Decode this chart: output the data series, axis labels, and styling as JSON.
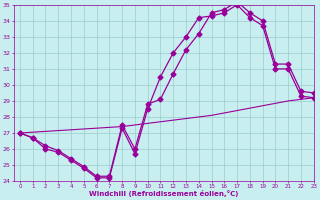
{
  "xlabel": "Windchill (Refroidissement éolien,°C)",
  "bg_color": "#c8eef0",
  "line_color": "#990099",
  "grid_color": "#99cccc",
  "line1_x": [
    0,
    1,
    2,
    3,
    4,
    5,
    6,
    7,
    8,
    9,
    10,
    11,
    12,
    13,
    14,
    15,
    16,
    17,
    18,
    19,
    20,
    21,
    22,
    23
  ],
  "line1_y": [
    27.0,
    26.7,
    26.0,
    25.8,
    25.3,
    24.8,
    24.2,
    24.2,
    27.3,
    25.7,
    28.5,
    30.5,
    32.0,
    33.0,
    34.2,
    34.3,
    34.5,
    35.0,
    34.2,
    33.7,
    31.0,
    31.0,
    29.3,
    29.2
  ],
  "line2_x": [
    0,
    1,
    2,
    3,
    4,
    5,
    6,
    7,
    8,
    9,
    10,
    11,
    12,
    13,
    14,
    15,
    16,
    17,
    18,
    19,
    20,
    21,
    22,
    23
  ],
  "line2_y": [
    27.0,
    26.7,
    26.2,
    25.9,
    25.4,
    24.9,
    24.3,
    24.3,
    27.5,
    26.0,
    28.8,
    29.1,
    30.7,
    32.2,
    33.2,
    34.5,
    34.7,
    35.2,
    34.5,
    34.0,
    31.3,
    31.3,
    29.6,
    29.5
  ],
  "line3_x": [
    0,
    1,
    2,
    3,
    4,
    5,
    6,
    7,
    8,
    9,
    10,
    11,
    12,
    13,
    14,
    15,
    16,
    17,
    18,
    19,
    20,
    21,
    22,
    23
  ],
  "line3_y": [
    27.0,
    27.05,
    27.1,
    27.15,
    27.2,
    27.25,
    27.3,
    27.35,
    27.4,
    27.5,
    27.6,
    27.7,
    27.8,
    27.9,
    28.0,
    28.1,
    28.25,
    28.4,
    28.55,
    28.7,
    28.85,
    29.0,
    29.1,
    29.2
  ],
  "ylim": [
    24,
    35
  ],
  "xlim": [
    -0.5,
    23
  ],
  "yticks": [
    24,
    25,
    26,
    27,
    28,
    29,
    30,
    31,
    32,
    33,
    34,
    35
  ],
  "xticks": [
    0,
    1,
    2,
    3,
    4,
    5,
    6,
    7,
    8,
    9,
    10,
    11,
    12,
    13,
    14,
    15,
    16,
    17,
    18,
    19,
    20,
    21,
    22,
    23
  ]
}
